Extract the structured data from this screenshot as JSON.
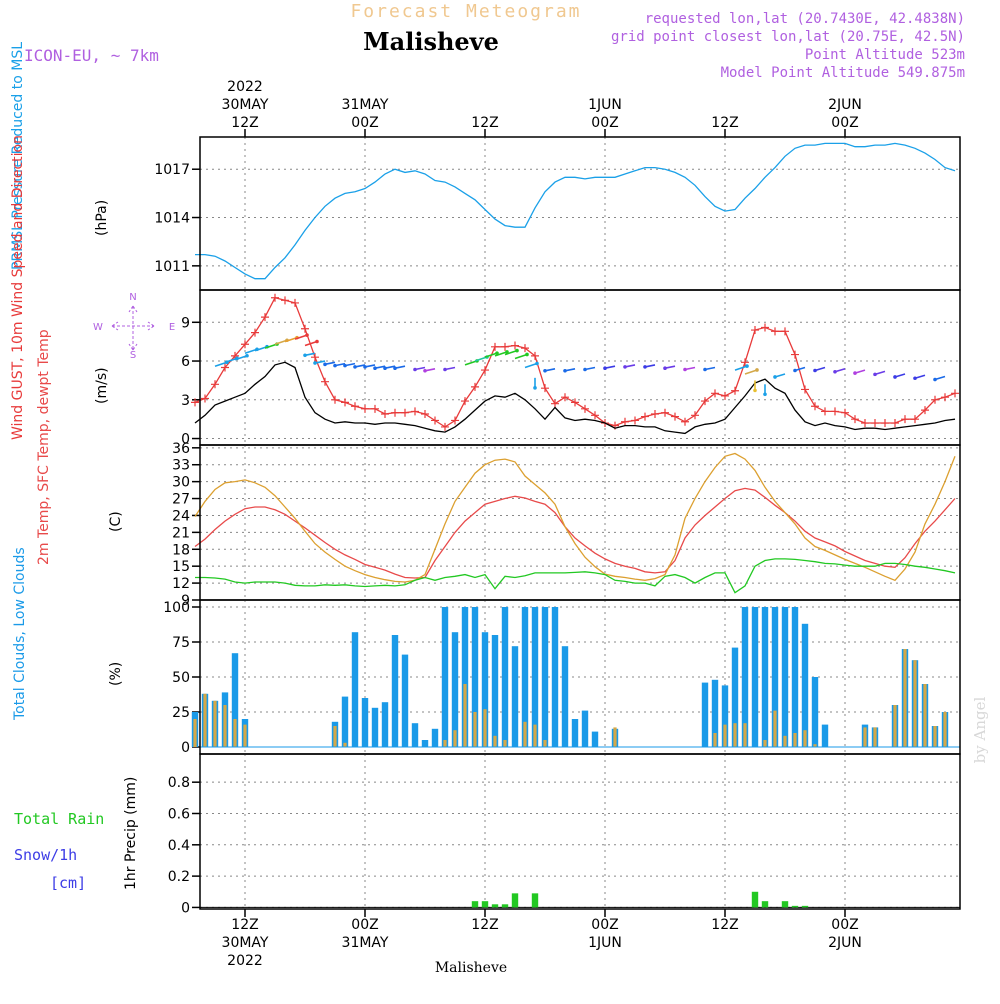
{
  "header": {
    "forecast_title": "Forecast Meteogram",
    "location": "Malisheve",
    "model": "ICON-EU, ~ 7km",
    "requested": "requested lon,lat (20.7430E, 42.4838N)",
    "grid_point": "grid point closest lon,lat (20.75E, 42.5N)",
    "point_alt": "Point Altitude 523m",
    "model_alt": "Model Point Altitude 549.875m",
    "footer_location": "Malisheve",
    "credit": "by Angel"
  },
  "colors": {
    "pressure": "#1aa0e8",
    "gust": "#e83a3a",
    "wind": "#000000",
    "t2m": "#e84a4a",
    "sfc": "#dca030",
    "dewpt": "#22c822",
    "total_clouds": "#1a9ae8",
    "low_clouds": "#d4a848",
    "rain": "#22c822",
    "snow": "#3c3ce6",
    "purple": "#b060e0",
    "title": "#f0c890"
  },
  "time_axis": {
    "top_labels": [
      {
        "t": 6,
        "lines": [
          "2022",
          "30MAY",
          "12Z"
        ]
      },
      {
        "t": 18,
        "lines": [
          "31MAY",
          "00Z"
        ]
      },
      {
        "t": 30,
        "lines": [
          "12Z"
        ]
      },
      {
        "t": 42,
        "lines": [
          "1JUN",
          "00Z"
        ]
      },
      {
        "t": 54,
        "lines": [
          "12Z"
        ]
      },
      {
        "t": 66,
        "lines": [
          "2JUN",
          "00Z"
        ]
      }
    ],
    "bottom_labels": [
      {
        "t": 6,
        "lines": [
          "12Z",
          "30MAY",
          "2022"
        ]
      },
      {
        "t": 18,
        "lines": [
          "00Z",
          "31MAY"
        ]
      },
      {
        "t": 30,
        "lines": [
          "12Z"
        ]
      },
      {
        "t": 42,
        "lines": [
          "00Z",
          "1JUN"
        ]
      },
      {
        "t": 54,
        "lines": [
          "12Z"
        ]
      },
      {
        "t": 66,
        "lines": [
          "00Z",
          "2JUN"
        ]
      }
    ],
    "range_hours": [
      1.5,
      77.5
    ],
    "start": "2022-05-30 07Z"
  },
  "chart_data": [
    {
      "type": "line",
      "title": "PRMSL Pressure Reduced to MSL",
      "ylabel": "(hPa)",
      "ylim": [
        1009.5,
        1019
      ],
      "yticks": [
        1011,
        1014,
        1017
      ],
      "grid": true,
      "x_hours": [
        1,
        2,
        3,
        4,
        5,
        6,
        7,
        8,
        9,
        10,
        11,
        12,
        13,
        14,
        15,
        16,
        17,
        18,
        19,
        20,
        21,
        22,
        23,
        24,
        25,
        26,
        27,
        28,
        29,
        30,
        31,
        32,
        33,
        34,
        35,
        36,
        37,
        38,
        39,
        40,
        41,
        42,
        43,
        44,
        45,
        46,
        47,
        48,
        49,
        50,
        51,
        52,
        53,
        54,
        55,
        56,
        57,
        58,
        59,
        60,
        61,
        62,
        63,
        64,
        65,
        66,
        67,
        68,
        69,
        70,
        71,
        72,
        73,
        74,
        75,
        76,
        77
      ],
      "series": [
        {
          "key": "pressure",
          "values": [
            1011.7,
            1011.7,
            1011.6,
            1011.3,
            1010.9,
            1010.5,
            1010.2,
            1010.2,
            1010.9,
            1011.5,
            1012.3,
            1013.2,
            1014.0,
            1014.7,
            1015.2,
            1015.5,
            1015.6,
            1015.8,
            1016.2,
            1016.7,
            1017.0,
            1016.8,
            1016.9,
            1016.7,
            1016.3,
            1016.2,
            1015.9,
            1015.5,
            1015.1,
            1014.5,
            1013.9,
            1013.5,
            1013.4,
            1013.4,
            1014.6,
            1015.6,
            1016.2,
            1016.5,
            1016.5,
            1016.4,
            1016.5,
            1016.5,
            1016.5,
            1016.7,
            1016.9,
            1017.1,
            1017.1,
            1017.0,
            1016.8,
            1016.5,
            1016.0,
            1015.3,
            1014.7,
            1014.4,
            1014.5,
            1015.2,
            1015.8,
            1016.5,
            1017.1,
            1017.8,
            1018.3,
            1018.5,
            1018.5,
            1018.6,
            1018.6,
            1018.6,
            1018.4,
            1018.4,
            1018.5,
            1018.5,
            1018.6,
            1018.5,
            1018.3,
            1018.0,
            1017.6,
            1017.1,
            1016.9
          ]
        }
      ]
    },
    {
      "type": "line",
      "title": "Wind GUST, 10m Wind Speed and Direction",
      "ylabel": "(m/s)",
      "ylim": [
        -0.5,
        11.5
      ],
      "yticks": [
        0,
        3,
        6,
        9
      ],
      "compass": [
        "N",
        "W",
        "E",
        "S"
      ],
      "grid": true,
      "x_hours": [
        1,
        2,
        3,
        4,
        5,
        6,
        7,
        8,
        9,
        10,
        11,
        12,
        13,
        14,
        15,
        16,
        17,
        18,
        19,
        20,
        21,
        22,
        23,
        24,
        25,
        26,
        27,
        28,
        29,
        30,
        31,
        32,
        33,
        34,
        35,
        36,
        37,
        38,
        39,
        40,
        41,
        42,
        43,
        44,
        45,
        46,
        47,
        48,
        49,
        50,
        51,
        52,
        53,
        54,
        55,
        56,
        57,
        58,
        59,
        60,
        61,
        62,
        63,
        64,
        65,
        66,
        67,
        68,
        69,
        70,
        71,
        72,
        73,
        74,
        75,
        76,
        77
      ],
      "series": [
        {
          "key": "gust",
          "values": [
            2.8,
            3.1,
            4.2,
            5.5,
            6.4,
            7.3,
            8.2,
            9.4,
            10.9,
            10.7,
            10.5,
            8.5,
            6.3,
            4.4,
            3.0,
            2.8,
            2.5,
            2.3,
            2.3,
            1.9,
            2.0,
            2.0,
            2.1,
            1.9,
            1.4,
            0.9,
            1.4,
            2.9,
            4.0,
            5.3,
            7.1,
            7.1,
            7.2,
            7.0,
            6.4,
            3.9,
            2.7,
            3.2,
            2.8,
            2.3,
            1.8,
            1.2,
            1.0,
            1.3,
            1.4,
            1.7,
            1.9,
            2.0,
            1.7,
            1.3,
            1.8,
            2.9,
            3.5,
            3.3,
            3.7,
            5.9,
            8.4,
            8.6,
            8.3,
            8.3,
            6.5,
            3.8,
            2.5,
            2.1,
            2.1,
            2.0,
            1.5,
            1.2,
            1.2,
            1.2,
            1.2,
            1.5,
            1.5,
            2.2,
            3.0,
            3.2,
            3.5
          ]
        },
        {
          "key": "wind",
          "values": [
            1.2,
            1.8,
            2.6,
            2.9,
            3.2,
            3.5,
            4.2,
            4.8,
            5.7,
            5.9,
            5.5,
            3.2,
            2.0,
            1.5,
            1.2,
            1.3,
            1.2,
            1.2,
            1.1,
            1.2,
            1.2,
            1.1,
            1.0,
            0.8,
            0.6,
            0.5,
            0.9,
            1.5,
            2.2,
            2.9,
            3.3,
            3.2,
            3.5,
            3.0,
            2.3,
            1.5,
            2.4,
            1.6,
            1.4,
            1.5,
            1.4,
            1.2,
            0.8,
            1.0,
            1.0,
            0.9,
            0.9,
            0.6,
            0.5,
            0.4,
            0.9,
            1.1,
            1.2,
            1.5,
            2.4,
            3.3,
            4.3,
            4.6,
            3.9,
            3.5,
            2.2,
            1.3,
            1.0,
            1.2,
            1.0,
            0.9,
            0.7,
            0.8,
            0.8,
            0.7,
            0.8,
            0.9,
            1.0,
            1.1,
            1.2,
            1.4,
            1.5
          ]
        }
      ]
    },
    {
      "type": "line",
      "title": "2m Temp, SFC Temp, dewpt Temp",
      "ylabel": "(C)",
      "ylim": [
        9,
        36.5
      ],
      "yticks": [
        9,
        12,
        15,
        18,
        21,
        24,
        27,
        30,
        33,
        36
      ],
      "grid": true,
      "x_hours": [
        1,
        2,
        3,
        4,
        5,
        6,
        7,
        8,
        9,
        10,
        11,
        12,
        13,
        14,
        15,
        16,
        17,
        18,
        19,
        20,
        21,
        22,
        23,
        24,
        25,
        26,
        27,
        28,
        29,
        30,
        31,
        32,
        33,
        34,
        35,
        36,
        37,
        38,
        39,
        40,
        41,
        42,
        43,
        44,
        45,
        46,
        47,
        48,
        49,
        50,
        51,
        52,
        53,
        54,
        55,
        56,
        57,
        58,
        59,
        60,
        61,
        62,
        63,
        64,
        65,
        66,
        67,
        68,
        69,
        70,
        71,
        72,
        73,
        74,
        75,
        76,
        77
      ],
      "series": [
        {
          "key": "t2m",
          "values": [
            18.5,
            19.8,
            21.5,
            23.0,
            24.2,
            25.2,
            25.5,
            25.5,
            25.0,
            24.2,
            23.0,
            21.8,
            20.5,
            19.2,
            18.0,
            17.0,
            16.2,
            15.3,
            14.8,
            14.3,
            13.6,
            13.0,
            12.9,
            13.0,
            16.0,
            18.5,
            21.0,
            23.0,
            24.5,
            26.0,
            26.5,
            27.0,
            27.4,
            27.1,
            26.5,
            26.0,
            24.5,
            22.0,
            20.0,
            18.6,
            17.3,
            16.3,
            15.5,
            15.0,
            14.6,
            14.0,
            13.8,
            14.0,
            16.0,
            20.0,
            22.3,
            24.0,
            25.5,
            27.0,
            28.4,
            28.8,
            28.5,
            27.2,
            25.8,
            24.5,
            23.0,
            21.2,
            20.0,
            19.3,
            18.6,
            17.6,
            16.8,
            16.0,
            15.5,
            15.0,
            14.8,
            16.5,
            19.0,
            21.2,
            23.0,
            25.0,
            27.0
          ]
        },
        {
          "key": "sfc",
          "values": [
            23.8,
            26.5,
            28.6,
            29.8,
            30.0,
            30.3,
            29.8,
            29.0,
            27.5,
            25.5,
            23.5,
            21.2,
            19.0,
            17.5,
            16.2,
            15.0,
            14.2,
            13.5,
            13.0,
            12.6,
            12.3,
            12.2,
            12.5,
            13.5,
            18.0,
            22.5,
            26.5,
            29.0,
            31.5,
            33.0,
            33.8,
            34.0,
            33.5,
            31.0,
            29.5,
            28.0,
            26.0,
            22.0,
            19.0,
            16.6,
            14.9,
            13.6,
            13.2,
            13.0,
            12.7,
            12.5,
            12.8,
            13.5,
            17.0,
            23.5,
            27.0,
            30.0,
            32.5,
            34.5,
            35.0,
            34.0,
            32.0,
            29.0,
            26.5,
            24.5,
            22.5,
            20.0,
            18.5,
            17.8,
            17.0,
            16.2,
            15.5,
            14.8,
            14.0,
            13.2,
            12.5,
            14.5,
            17.5,
            22.5,
            26.0,
            30.0,
            34.5
          ]
        },
        {
          "key": "dewpt",
          "values": [
            13.0,
            13.0,
            12.9,
            12.7,
            12.2,
            12.0,
            12.2,
            12.2,
            12.2,
            12.0,
            11.6,
            11.5,
            11.5,
            11.7,
            11.6,
            11.7,
            11.5,
            11.4,
            11.5,
            11.6,
            11.5,
            11.7,
            12.5,
            13.0,
            12.5,
            13.0,
            13.2,
            13.5,
            13.0,
            13.5,
            11.0,
            13.2,
            13.0,
            13.3,
            13.8,
            13.8,
            13.8,
            13.8,
            13.9,
            14.0,
            13.8,
            13.5,
            12.5,
            12.3,
            12.0,
            12.0,
            11.5,
            13.2,
            13.5,
            13.0,
            12.0,
            13.0,
            13.8,
            13.8,
            10.3,
            11.5,
            15.0,
            16.0,
            16.3,
            16.3,
            16.2,
            16.0,
            15.8,
            15.5,
            15.4,
            15.2,
            15.0,
            15.0,
            15.0,
            15.5,
            15.5,
            15.3,
            15.0,
            14.8,
            14.5,
            14.2,
            13.8
          ]
        }
      ]
    },
    {
      "type": "bar",
      "title": "Total Clouds, Low Clouds",
      "ylabel": "(%)",
      "ylim": [
        -5,
        105
      ],
      "yticks": [
        0,
        25,
        50,
        75,
        100
      ],
      "grid": true,
      "x_hours": [
        1,
        2,
        3,
        4,
        5,
        6,
        7,
        8,
        9,
        10,
        11,
        12,
        13,
        14,
        15,
        16,
        17,
        18,
        19,
        20,
        21,
        22,
        23,
        24,
        25,
        26,
        27,
        28,
        29,
        30,
        31,
        32,
        33,
        34,
        35,
        36,
        37,
        38,
        39,
        40,
        41,
        42,
        43,
        44,
        45,
        46,
        47,
        48,
        49,
        50,
        51,
        52,
        53,
        54,
        55,
        56,
        57,
        58,
        59,
        60,
        61,
        62,
        63,
        64,
        65,
        66,
        67,
        68,
        69,
        70,
        71,
        72,
        73,
        74,
        75,
        76,
        77
      ],
      "series": [
        {
          "key": "total_clouds",
          "values": [
            25,
            38,
            33,
            39,
            67,
            20,
            0,
            0,
            0,
            0,
            0,
            0,
            0,
            0,
            18,
            36,
            82,
            35,
            28,
            32,
            80,
            66,
            17,
            5,
            13,
            100,
            82,
            100,
            100,
            82,
            80,
            100,
            72,
            100,
            100,
            100,
            100,
            72,
            20,
            26,
            11,
            0,
            13,
            0,
            0,
            0,
            0,
            0,
            0,
            0,
            0,
            46,
            48,
            44,
            71,
            100,
            100,
            100,
            100,
            100,
            100,
            88,
            50,
            16,
            0,
            0,
            0,
            16,
            14,
            0,
            30,
            70,
            62,
            45,
            15,
            25,
            0
          ]
        },
        {
          "key": "low_clouds",
          "values": [
            20,
            38,
            33,
            30,
            20,
            16,
            0,
            0,
            0,
            0,
            0,
            0,
            0,
            0,
            15,
            3,
            0,
            0,
            0,
            0,
            0,
            0,
            0,
            0,
            0,
            5,
            12,
            45,
            25,
            27,
            8,
            5,
            0,
            18,
            16,
            5,
            0,
            0,
            0,
            0,
            0,
            0,
            14,
            0,
            0,
            0,
            0,
            0,
            0,
            0,
            0,
            0,
            10,
            16,
            17,
            17,
            0,
            5,
            26,
            8,
            10,
            12,
            2,
            0,
            0,
            0,
            0,
            14,
            14,
            0,
            30,
            70,
            62,
            45,
            15,
            25,
            0
          ]
        }
      ]
    },
    {
      "type": "bar",
      "title": "1hr Precip (mm)",
      "ylabel": "1hr Precip (mm)",
      "legend": [
        "Total Rain",
        "Snow/1h",
        "[cm]"
      ],
      "ylim": [
        -0.01,
        0.98
      ],
      "yticks": [
        0,
        0.2,
        0.4,
        0.6,
        0.8
      ],
      "grid": true,
      "bars": [
        {
          "t": 29,
          "value": 0.04
        },
        {
          "t": 30,
          "value": 0.04
        },
        {
          "t": 31,
          "value": 0.02
        },
        {
          "t": 32,
          "value": 0.02
        },
        {
          "t": 33,
          "value": 0.09
        },
        {
          "t": 35,
          "value": 0.09
        },
        {
          "t": 57,
          "value": 0.1
        },
        {
          "t": 58,
          "value": 0.04
        },
        {
          "t": 60,
          "value": 0.04
        },
        {
          "t": 61,
          "value": 0.01
        },
        {
          "t": 62,
          "value": 0.01
        }
      ]
    }
  ]
}
